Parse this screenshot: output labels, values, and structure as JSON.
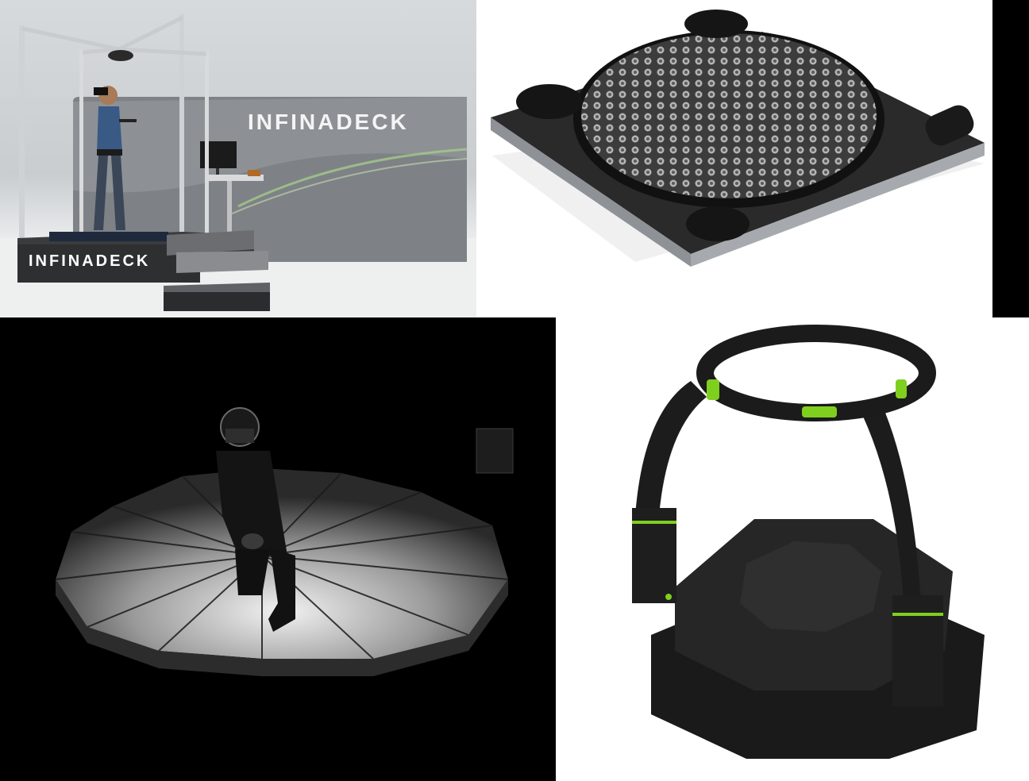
{
  "images": [
    {
      "logo_top": "INFINADECK",
      "logo_base": "INFINADECK"
    },
    {},
    {},
    {}
  ],
  "colors": {
    "accent_green": "#7fcf1f",
    "device_black": "#1e1e1e",
    "wall_gray": "#cfd2d4"
  }
}
